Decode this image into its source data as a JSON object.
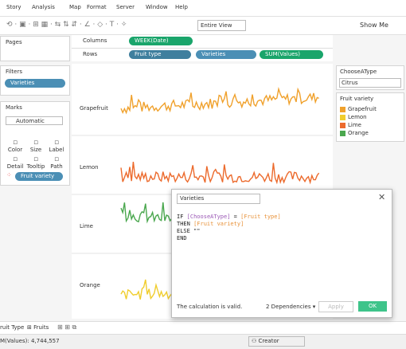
{
  "menu": [
    "Story",
    "Analysis",
    "Map",
    "Format",
    "Server",
    "Window",
    "Help"
  ],
  "toolbar": {
    "fit": "Entire View",
    "show_me": "Show Me"
  },
  "pages": {
    "title": "Pages"
  },
  "shelves": {
    "columns": {
      "label": "Columns",
      "pills": [
        "WEEK(Date)"
      ]
    },
    "rows": {
      "label": "Rows",
      "pills": [
        "Fruit type",
        "Varieties",
        "SUM(Values)"
      ]
    }
  },
  "filters": {
    "title": "Filters",
    "pills": [
      "Varieties"
    ]
  },
  "marks": {
    "title": "Marks",
    "type": "Automatic",
    "buttons": [
      "Color",
      "Size",
      "Label",
      "Detail",
      "Tooltip",
      "Path"
    ],
    "pill": "Fruit variety"
  },
  "view": {
    "rows": [
      "Grapefruit",
      "Lemon",
      "Lime",
      "Orange"
    ]
  },
  "parameter": {
    "title": "ChooseAType",
    "value": "Citrus"
  },
  "legend": {
    "title": "Fruit variety",
    "items": [
      {
        "label": "Grapefruit",
        "color": "#f0a12c"
      },
      {
        "label": "Lemon",
        "color": "#f0cd2d"
      },
      {
        "label": "Lime",
        "color": "#ec6a2c"
      },
      {
        "label": "Orange",
        "color": "#4aa74e"
      }
    ]
  },
  "dialog": {
    "name": "Varieties",
    "code": [
      [
        "IF ",
        "[ChooseAType]",
        " = ",
        "[Fruit type]"
      ],
      [
        "THEN ",
        "[Fruit variety]"
      ],
      [
        "ELSE \"\""
      ],
      [
        "END"
      ]
    ],
    "status": "The calculation is valid.",
    "dependencies": "2 Dependencies",
    "apply": "Apply",
    "ok": "OK"
  },
  "tabs": [
    "ruit Type",
    "Fruits"
  ],
  "status": {
    "sum": "M(Values): 4,744,557",
    "user": "Creator"
  }
}
